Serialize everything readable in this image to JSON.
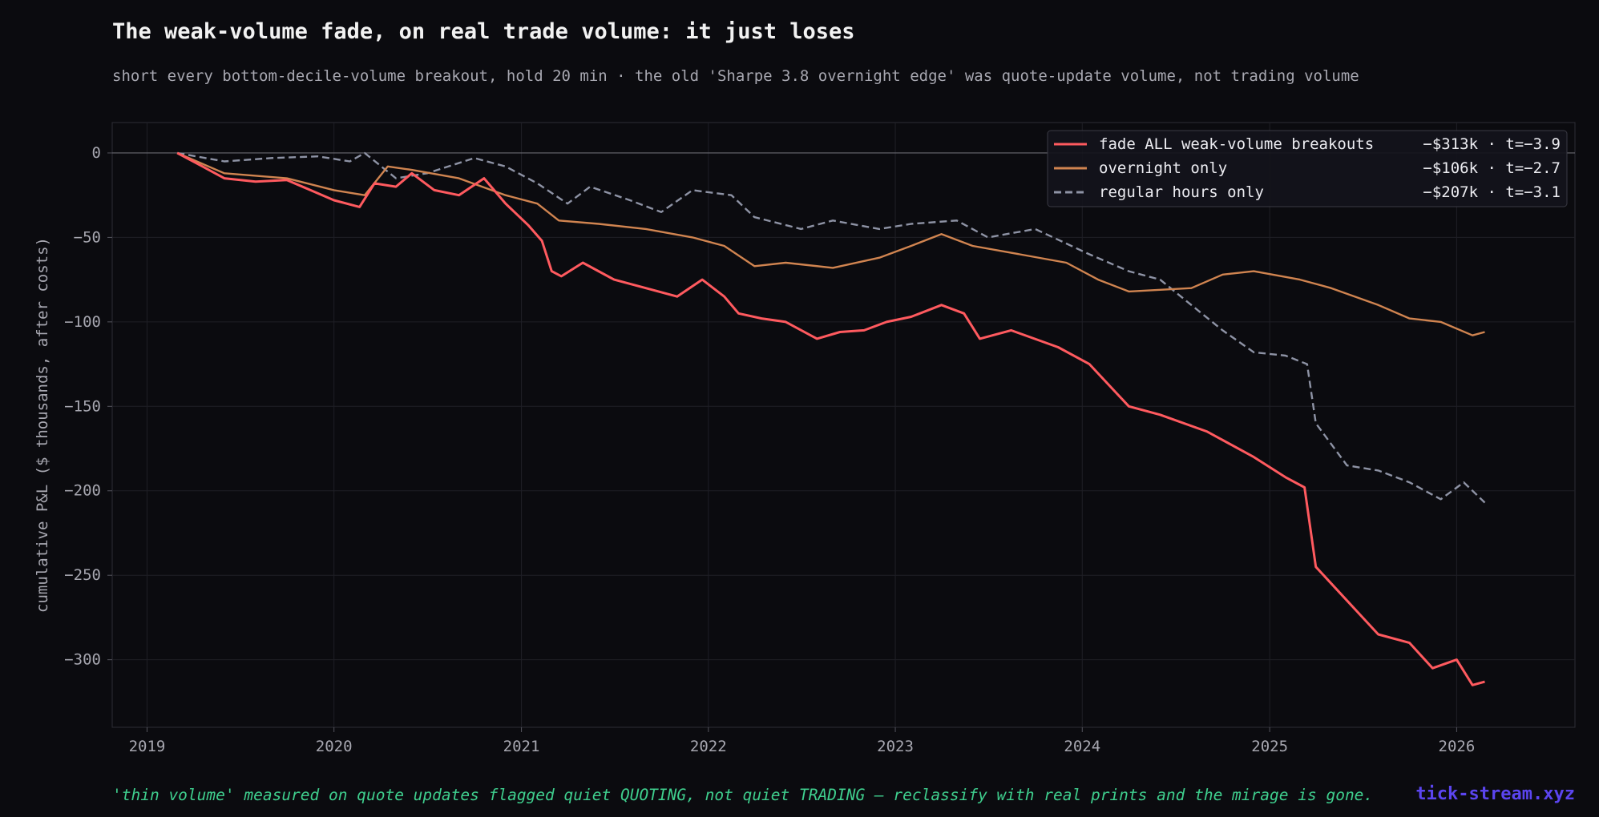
{
  "title": "The weak-volume fade, on real trade volume: it just loses",
  "subtitle": "short every bottom-decile-volume breakout, hold 20 min · the old 'Sharpe 3.8 overnight edge' was quote-update volume, not trading volume",
  "footer_note": "'thin volume' measured on quote updates flagged quiet QUOTING, not quiet TRADING — reclassify with real prints and the mirage is gone.",
  "brand": "tick-stream.xyz",
  "colors": {
    "background": "#0b0b0f",
    "fade_all": "#ff5a5f",
    "overnight": "#d08450",
    "regular": "#8e93a5",
    "footer_note": "#3fcf8e",
    "brand": "#5b45ef"
  },
  "chart_data": {
    "type": "line",
    "ylabel": "cumulative P&L ($ thousands, after costs)",
    "xlabel": "",
    "x_ticks": [
      "2019",
      "2020",
      "2021",
      "2022",
      "2023",
      "2024",
      "2025",
      "2026"
    ],
    "y_ticks": [
      0,
      -50,
      -100,
      -150,
      -200,
      -250,
      -300
    ],
    "xlim": [
      "2018-10-25",
      "2026-08-20"
    ],
    "ylim": [
      -340,
      18
    ],
    "grid": true,
    "legend_position": "top-right",
    "series": [
      {
        "name": "fade ALL weak-volume breakouts",
        "stat": "−$313k · t=−3.9",
        "style": "solid",
        "points": [
          [
            "2019-03-01",
            0
          ],
          [
            "2019-04-01",
            -5
          ],
          [
            "2019-06-01",
            -15
          ],
          [
            "2019-08-01",
            -17
          ],
          [
            "2019-10-01",
            -16
          ],
          [
            "2020-01-01",
            -28
          ],
          [
            "2020-02-20",
            -32
          ],
          [
            "2020-03-20",
            -18
          ],
          [
            "2020-05-01",
            -20
          ],
          [
            "2020-06-01",
            -12
          ],
          [
            "2020-07-15",
            -22
          ],
          [
            "2020-09-01",
            -25
          ],
          [
            "2020-10-20",
            -15
          ],
          [
            "2020-12-01",
            -30
          ],
          [
            "2021-01-15",
            -43
          ],
          [
            "2021-02-10",
            -52
          ],
          [
            "2021-03-01",
            -70
          ],
          [
            "2021-03-20",
            -73
          ],
          [
            "2021-05-01",
            -65
          ],
          [
            "2021-07-01",
            -75
          ],
          [
            "2021-09-01",
            -80
          ],
          [
            "2021-11-01",
            -85
          ],
          [
            "2021-12-20",
            -75
          ],
          [
            "2022-02-01",
            -85
          ],
          [
            "2022-03-01",
            -95
          ],
          [
            "2022-04-15",
            -98
          ],
          [
            "2022-06-01",
            -100
          ],
          [
            "2022-08-01",
            -110
          ],
          [
            "2022-09-15",
            -106
          ],
          [
            "2022-11-01",
            -105
          ],
          [
            "2022-12-15",
            -100
          ],
          [
            "2023-02-01",
            -97
          ],
          [
            "2023-04-01",
            -90
          ],
          [
            "2023-05-15",
            -95
          ],
          [
            "2023-06-15",
            -110
          ],
          [
            "2023-08-15",
            -105
          ],
          [
            "2023-11-15",
            -115
          ],
          [
            "2024-01-15",
            -125
          ],
          [
            "2024-04-01",
            -150
          ],
          [
            "2024-06-01",
            -155
          ],
          [
            "2024-09-01",
            -165
          ],
          [
            "2024-12-01",
            -180
          ],
          [
            "2025-02-01",
            -192
          ],
          [
            "2025-03-10",
            -198
          ],
          [
            "2025-04-01",
            -245
          ],
          [
            "2025-06-01",
            -265
          ],
          [
            "2025-08-01",
            -285
          ],
          [
            "2025-10-01",
            -290
          ],
          [
            "2025-11-15",
            -305
          ],
          [
            "2026-01-01",
            -300
          ],
          [
            "2026-02-01",
            -315
          ],
          [
            "2026-02-25",
            -313
          ]
        ]
      },
      {
        "name": "overnight only",
        "stat": "−$106k · t=−2.7",
        "style": "solid",
        "points": [
          [
            "2019-03-01",
            0
          ],
          [
            "2019-06-01",
            -12
          ],
          [
            "2019-10-01",
            -15
          ],
          [
            "2020-01-01",
            -22
          ],
          [
            "2020-03-01",
            -25
          ],
          [
            "2020-04-15",
            -8
          ],
          [
            "2020-06-01",
            -10
          ],
          [
            "2020-09-01",
            -15
          ],
          [
            "2020-12-01",
            -25
          ],
          [
            "2021-02-01",
            -30
          ],
          [
            "2021-03-15",
            -40
          ],
          [
            "2021-06-01",
            -42
          ],
          [
            "2021-09-01",
            -45
          ],
          [
            "2021-12-01",
            -50
          ],
          [
            "2022-02-01",
            -55
          ],
          [
            "2022-04-01",
            -67
          ],
          [
            "2022-06-01",
            -65
          ],
          [
            "2022-09-01",
            -68
          ],
          [
            "2022-12-01",
            -62
          ],
          [
            "2023-02-01",
            -55
          ],
          [
            "2023-04-01",
            -48
          ],
          [
            "2023-06-01",
            -55
          ],
          [
            "2023-09-01",
            -60
          ],
          [
            "2023-12-01",
            -65
          ],
          [
            "2024-02-01",
            -75
          ],
          [
            "2024-04-01",
            -82
          ],
          [
            "2024-08-01",
            -80
          ],
          [
            "2024-10-01",
            -72
          ],
          [
            "2024-12-01",
            -70
          ],
          [
            "2025-03-01",
            -75
          ],
          [
            "2025-05-01",
            -80
          ],
          [
            "2025-08-01",
            -90
          ],
          [
            "2025-10-01",
            -98
          ],
          [
            "2025-12-01",
            -100
          ],
          [
            "2026-02-01",
            -108
          ],
          [
            "2026-02-25",
            -106
          ]
        ]
      },
      {
        "name": "regular hours only",
        "stat": "−$207k · t=−3.1",
        "style": "dashed",
        "points": [
          [
            "2019-03-01",
            0
          ],
          [
            "2019-06-01",
            -5
          ],
          [
            "2019-09-01",
            -3
          ],
          [
            "2019-12-01",
            -2
          ],
          [
            "2020-02-01",
            -5
          ],
          [
            "2020-03-01",
            0
          ],
          [
            "2020-05-01",
            -15
          ],
          [
            "2020-07-01",
            -12
          ],
          [
            "2020-10-01",
            -3
          ],
          [
            "2020-12-01",
            -8
          ],
          [
            "2021-02-01",
            -18
          ],
          [
            "2021-04-01",
            -30
          ],
          [
            "2021-05-15",
            -20
          ],
          [
            "2021-08-01",
            -28
          ],
          [
            "2021-10-01",
            -35
          ],
          [
            "2021-12-01",
            -22
          ],
          [
            "2022-02-15",
            -25
          ],
          [
            "2022-04-01",
            -38
          ],
          [
            "2022-07-01",
            -45
          ],
          [
            "2022-09-01",
            -40
          ],
          [
            "2022-12-01",
            -45
          ],
          [
            "2023-02-01",
            -42
          ],
          [
            "2023-05-01",
            -40
          ],
          [
            "2023-07-01",
            -50
          ],
          [
            "2023-10-01",
            -45
          ],
          [
            "2024-01-15",
            -60
          ],
          [
            "2024-04-01",
            -70
          ],
          [
            "2024-06-01",
            -75
          ],
          [
            "2024-08-01",
            -90
          ],
          [
            "2024-10-01",
            -105
          ],
          [
            "2024-12-01",
            -118
          ],
          [
            "2025-02-01",
            -120
          ],
          [
            "2025-03-15",
            -125
          ],
          [
            "2025-04-01",
            -160
          ],
          [
            "2025-06-01",
            -185
          ],
          [
            "2025-08-01",
            -188
          ],
          [
            "2025-10-01",
            -195
          ],
          [
            "2025-12-01",
            -205
          ],
          [
            "2026-01-15",
            -195
          ],
          [
            "2026-02-25",
            -207
          ]
        ]
      }
    ]
  }
}
